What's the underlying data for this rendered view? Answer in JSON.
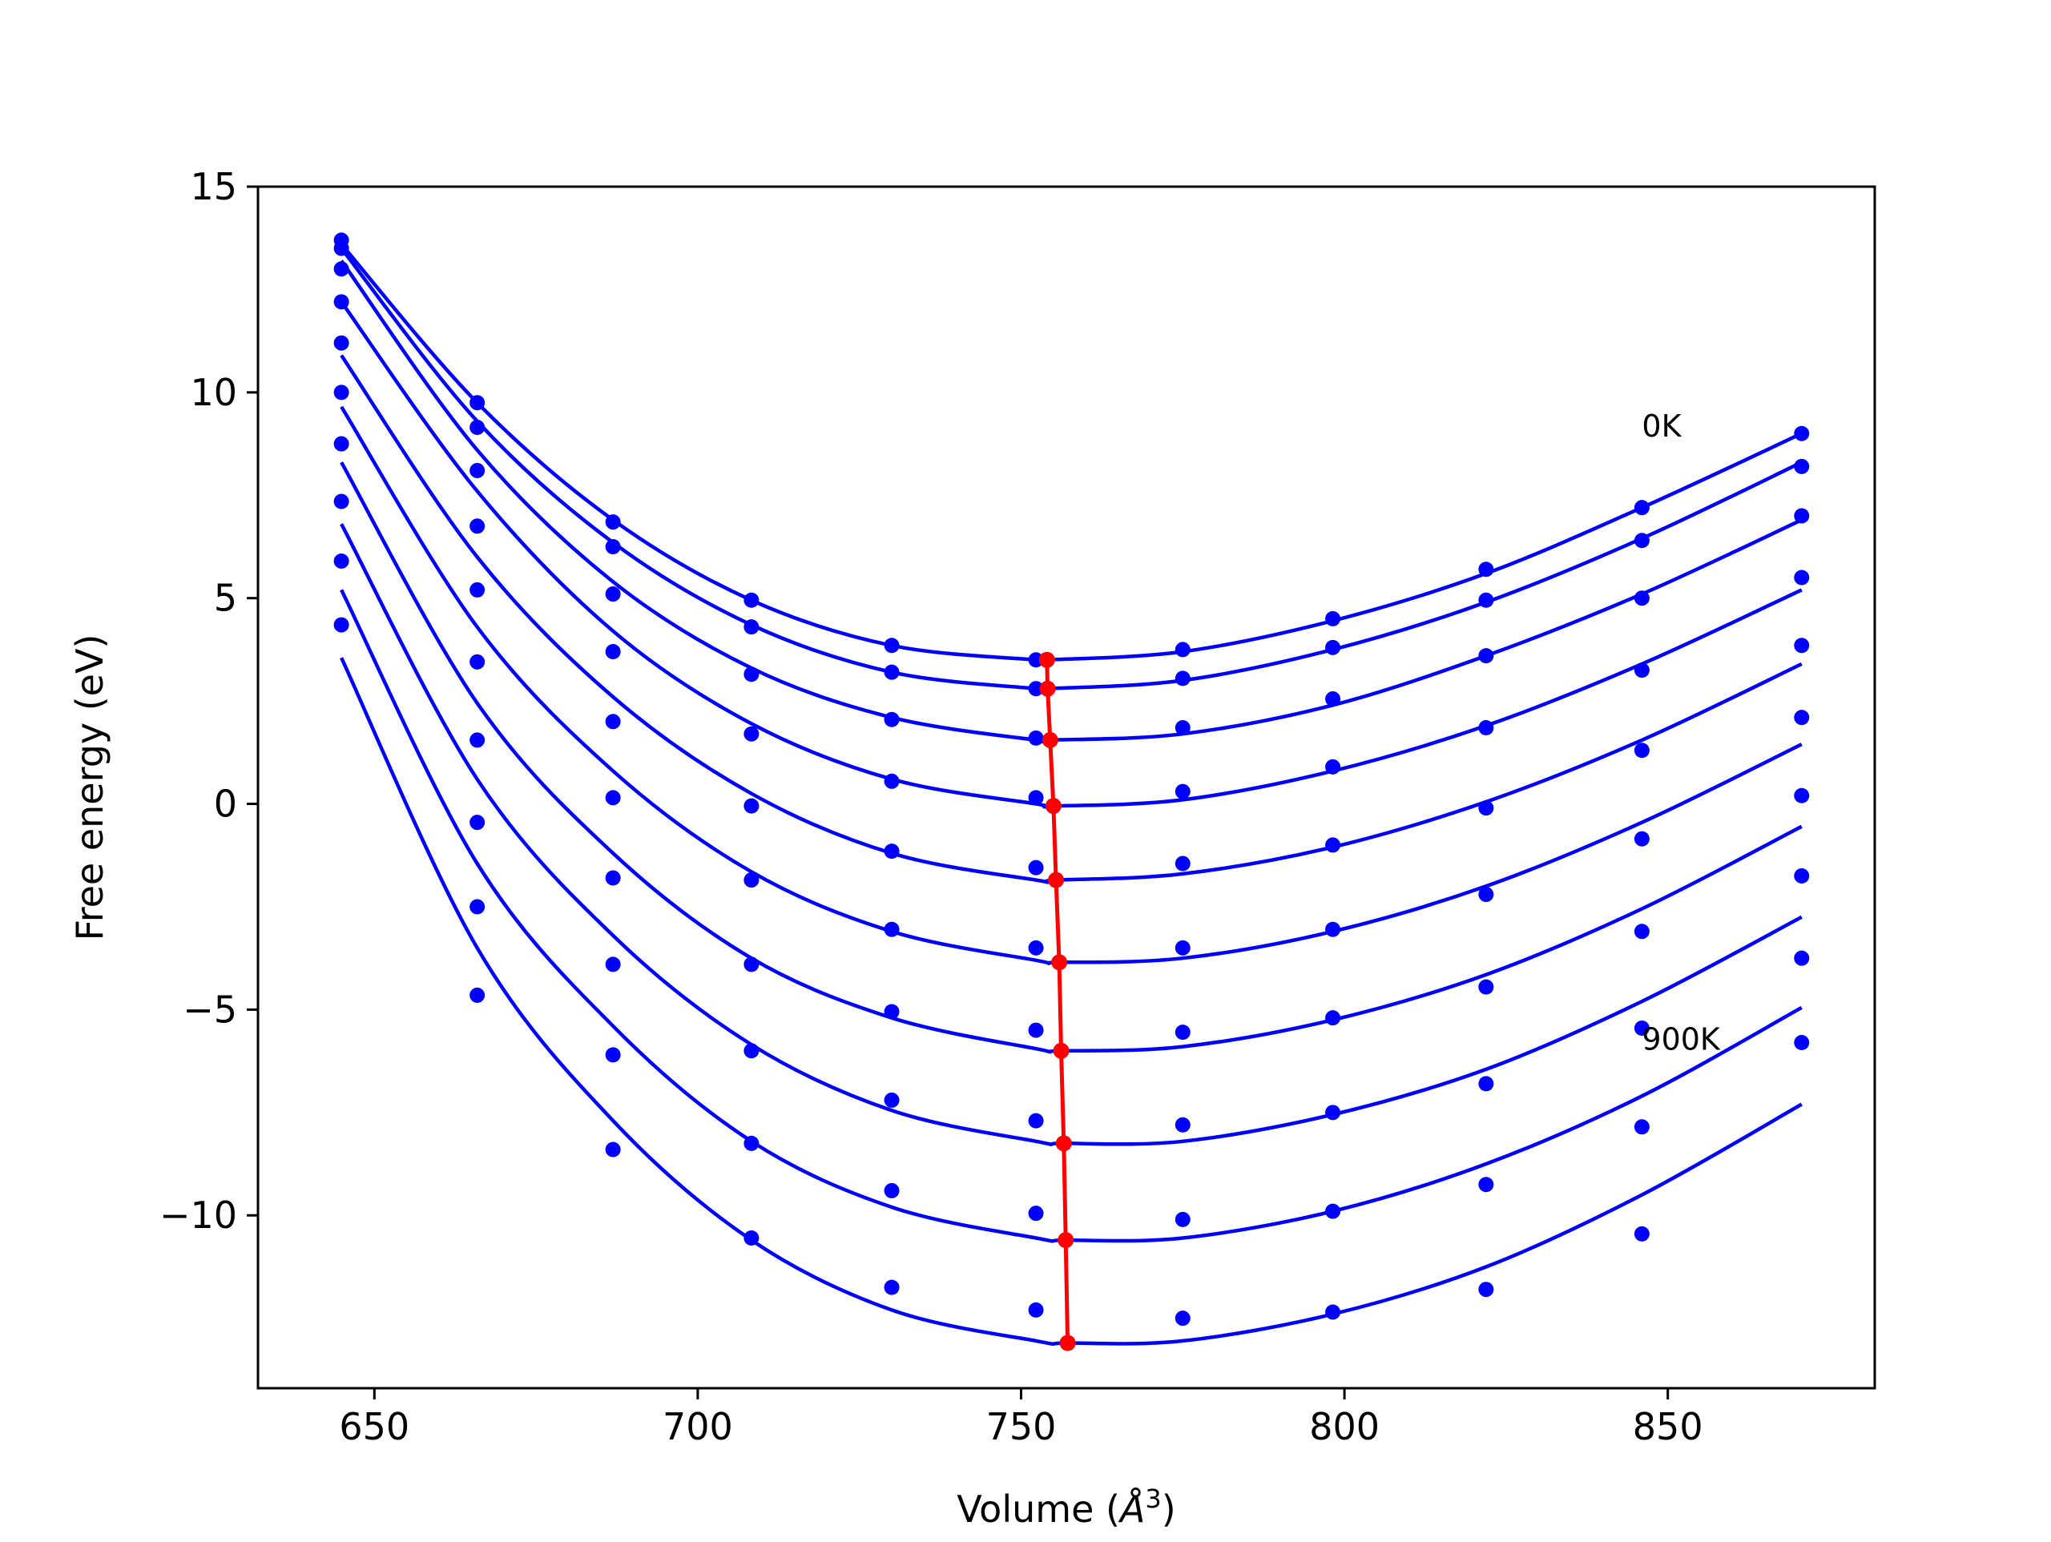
{
  "chart_data": {
    "type": "scatter",
    "title": "",
    "xlabel": "Volume (Å³)",
    "xlabel_base": "Volume (",
    "xlabel_sym": "Å",
    "xlabel_sup": "3",
    "xlabel_end": ")",
    "ylabel": "Free energy (eV)",
    "xlim": [
      632,
      882
    ],
    "ylim": [
      -14.2,
      15
    ],
    "xticks": [
      650,
      700,
      750,
      800,
      850
    ],
    "xtick_labels": [
      "650",
      "700",
      "750",
      "800",
      "850"
    ],
    "yticks": [
      15,
      10,
      5,
      0,
      -5,
      -10
    ],
    "ytick_labels": [
      "15",
      "10",
      "5",
      "0",
      "−5",
      "−10"
    ],
    "grid": false,
    "legend": "none",
    "annotations": [
      {
        "text": "0K",
        "x": 846,
        "y": 9.2
      },
      {
        "text": "900K",
        "x": 846,
        "y": -5.7
      }
    ],
    "x": [
      644.9,
      665.9,
      686.9,
      708.3,
      730.0,
      752.3,
      775.0,
      798.2,
      821.9,
      846.0,
      870.7
    ],
    "series": [
      {
        "values": [
          13.7,
          9.75,
          6.85,
          4.95,
          3.85,
          3.5,
          3.75,
          4.5,
          5.7,
          7.2,
          9.0
        ],
        "fit": [
          13.6,
          9.75,
          6.9,
          4.95,
          3.85,
          3.5,
          3.7,
          4.45,
          5.6,
          7.2,
          9.0
        ],
        "min": [
          754.0,
          3.5
        ]
      },
      {
        "values": [
          13.5,
          9.15,
          6.25,
          4.3,
          3.2,
          2.8,
          3.05,
          3.8,
          4.95,
          6.4,
          8.2
        ],
        "fit": [
          13.5,
          9.3,
          6.35,
          4.35,
          3.2,
          2.8,
          3.0,
          3.75,
          4.9,
          6.45,
          8.3
        ],
        "min": [
          754.1,
          2.8
        ]
      },
      {
        "values": [
          13.0,
          8.1,
          5.1,
          3.15,
          2.05,
          1.6,
          1.85,
          2.55,
          3.6,
          5.0,
          7.0
        ],
        "fit": [
          13.2,
          8.6,
          5.4,
          3.3,
          2.1,
          1.55,
          1.7,
          2.4,
          3.6,
          5.1,
          6.9
        ],
        "min": [
          754.5,
          1.55
        ]
      },
      {
        "values": [
          12.2,
          6.75,
          3.7,
          1.7,
          0.55,
          0.15,
          0.3,
          0.9,
          1.85,
          3.25,
          5.5
        ],
        "fit": [
          12.2,
          7.6,
          4.2,
          1.95,
          0.6,
          0.0,
          0.1,
          0.8,
          1.9,
          3.4,
          5.2
        ],
        "min": [
          755.0,
          -0.05
        ]
      },
      {
        "values": [
          11.2,
          5.2,
          2.0,
          -0.05,
          -1.15,
          -1.55,
          -1.45,
          -1.0,
          -0.1,
          1.3,
          3.85
        ],
        "fit": [
          10.9,
          6.0,
          2.6,
          0.25,
          -1.2,
          -1.85,
          -1.7,
          -1.05,
          0.05,
          1.55,
          3.4
        ],
        "min": [
          755.4,
          -1.85
        ]
      },
      {
        "values": [
          10.0,
          3.45,
          0.15,
          -1.85,
          -3.05,
          -3.5,
          -3.5,
          -3.05,
          -2.2,
          -0.85,
          2.1
        ],
        "fit": [
          9.65,
          4.3,
          0.8,
          -1.65,
          -3.1,
          -3.8,
          -3.75,
          -3.1,
          -2.0,
          -0.45,
          1.45
        ],
        "min": [
          755.9,
          -3.85
        ]
      },
      {
        "values": [
          8.75,
          1.55,
          -1.8,
          -3.9,
          -5.05,
          -5.5,
          -5.55,
          -5.2,
          -4.45,
          -3.1,
          0.2
        ],
        "fit": [
          8.3,
          2.45,
          -1.2,
          -3.75,
          -5.2,
          -5.95,
          -5.9,
          -5.25,
          -4.15,
          -2.55,
          -0.55
        ],
        "min": [
          756.2,
          -6.0
        ]
      },
      {
        "values": [
          7.35,
          -0.45,
          -3.9,
          -6.0,
          -7.2,
          -7.7,
          -7.8,
          -7.5,
          -6.8,
          -5.45,
          -1.75
        ],
        "fit": [
          6.8,
          0.6,
          -3.2,
          -5.85,
          -7.45,
          -8.2,
          -8.2,
          -7.55,
          -6.45,
          -4.8,
          -2.75
        ],
        "min": [
          756.6,
          -8.25
        ]
      },
      {
        "values": [
          5.9,
          -2.5,
          -6.1,
          -8.25,
          -9.4,
          -9.95,
          -10.1,
          -9.9,
          -9.25,
          -7.85,
          -3.75
        ],
        "fit": [
          5.2,
          -1.45,
          -5.4,
          -8.2,
          -9.8,
          -10.55,
          -10.55,
          -9.9,
          -8.75,
          -7.1,
          -4.95
        ],
        "min": [
          756.9,
          -10.6
        ]
      },
      {
        "values": [
          4.35,
          -4.65,
          -8.4,
          -10.55,
          -11.75,
          -12.3,
          -12.5,
          -12.35,
          -11.8,
          -10.45,
          -5.8
        ],
        "fit": [
          3.55,
          -3.5,
          -7.7,
          -10.6,
          -12.3,
          -13.05,
          -13.05,
          -12.4,
          -11.25,
          -9.5,
          -7.3
        ],
        "min": [
          757.2,
          -13.1
        ]
      }
    ],
    "minima_line": {
      "x": [
        754.0,
        754.1,
        754.5,
        755.0,
        755.4,
        755.9,
        756.2,
        756.6,
        756.9,
        757.2
      ],
      "y": [
        3.5,
        2.8,
        1.55,
        -0.05,
        -1.85,
        -3.85,
        -6.0,
        -8.25,
        -10.6,
        -13.1
      ]
    },
    "colors": {
      "series": "#0000ff",
      "minima": "#ff0000",
      "axes": "#000000"
    }
  }
}
